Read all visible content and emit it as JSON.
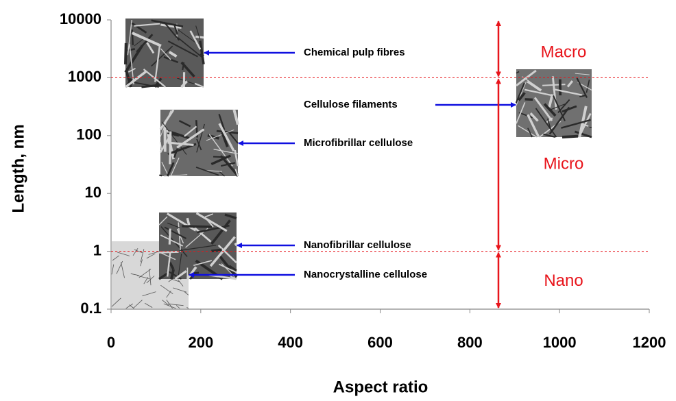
{
  "chart_data": {
    "type": "annotated-scatter",
    "x_label": "Aspect ratio",
    "y_label": "Length, nm",
    "xlim": [
      0,
      1200
    ],
    "xticks": [
      0,
      200,
      400,
      600,
      800,
      1000,
      1200
    ],
    "ylim": [
      0.1,
      10000
    ],
    "yticks": [
      10000,
      1000,
      100,
      10,
      1,
      0.1
    ],
    "yscale": "log",
    "reference_lines": [
      1000,
      1
    ],
    "reference_color": "#e8141b",
    "annotations": [
      "Chemical pulp fibres",
      "Cellulose filaments",
      "Microfibrillar cellulose",
      "Nanofibrillar cellulose",
      "Nanocrystalline cellulose"
    ],
    "arrow_color": "#1010e0",
    "regions": [
      {
        "label": "Macro",
        "from": 1000,
        "to": 10000
      },
      {
        "label": "Micro",
        "from": 1,
        "to": 1000
      },
      {
        "label": "Nano",
        "from": 0.1,
        "to": 1
      }
    ],
    "region_color": "#e8141b"
  }
}
